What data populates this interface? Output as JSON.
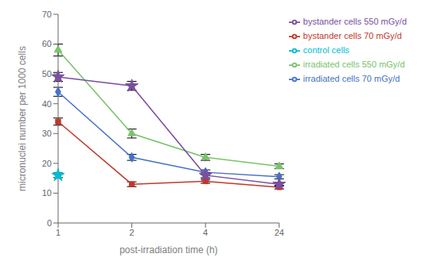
{
  "chart_data": {
    "type": "line",
    "categories": [
      "1",
      "2",
      "4",
      "24"
    ],
    "xlabel": "post-irradiation time (h)",
    "ylabel": "micronuclei number per 1000 cells",
    "ylim": [
      0,
      70
    ],
    "yticks": [
      0,
      10,
      20,
      30,
      40,
      50,
      60,
      70
    ],
    "grid": false,
    "legend": "right",
    "series": [
      {
        "name": "irradiated cells 70 mGy/d",
        "color": "#4472C4",
        "marker": "diamond",
        "values": [
          44,
          22,
          17,
          15.5
        ],
        "yerr": [
          1.5,
          1.0,
          0.8,
          0.7
        ]
      },
      {
        "name": "bystander cells 70 mGy/d",
        "color": "#C0392B",
        "marker": "square",
        "values": [
          34,
          13,
          14,
          12
        ],
        "yerr": [
          1.2,
          0.8,
          0.7,
          0.6
        ]
      },
      {
        "name": "irradiated cells 550 mGy/d",
        "color": "#7AC36A",
        "marker": "triangle",
        "values": [
          58,
          30,
          22,
          19
        ],
        "yerr": [
          2.0,
          1.5,
          1.0,
          0.8
        ]
      },
      {
        "name": "bystander cells 550 mGy/d",
        "color": "#7B4EA0",
        "marker": "star",
        "values": [
          49,
          46,
          16,
          13
        ],
        "yerr": [
          1.5,
          1.5,
          0.8,
          0.6
        ]
      },
      {
        "name": "control cells",
        "color": "#00BCD4",
        "marker": "star",
        "values": [
          16,
          null,
          null,
          null
        ],
        "yerr": [
          0.8,
          null,
          null,
          null
        ]
      }
    ]
  }
}
